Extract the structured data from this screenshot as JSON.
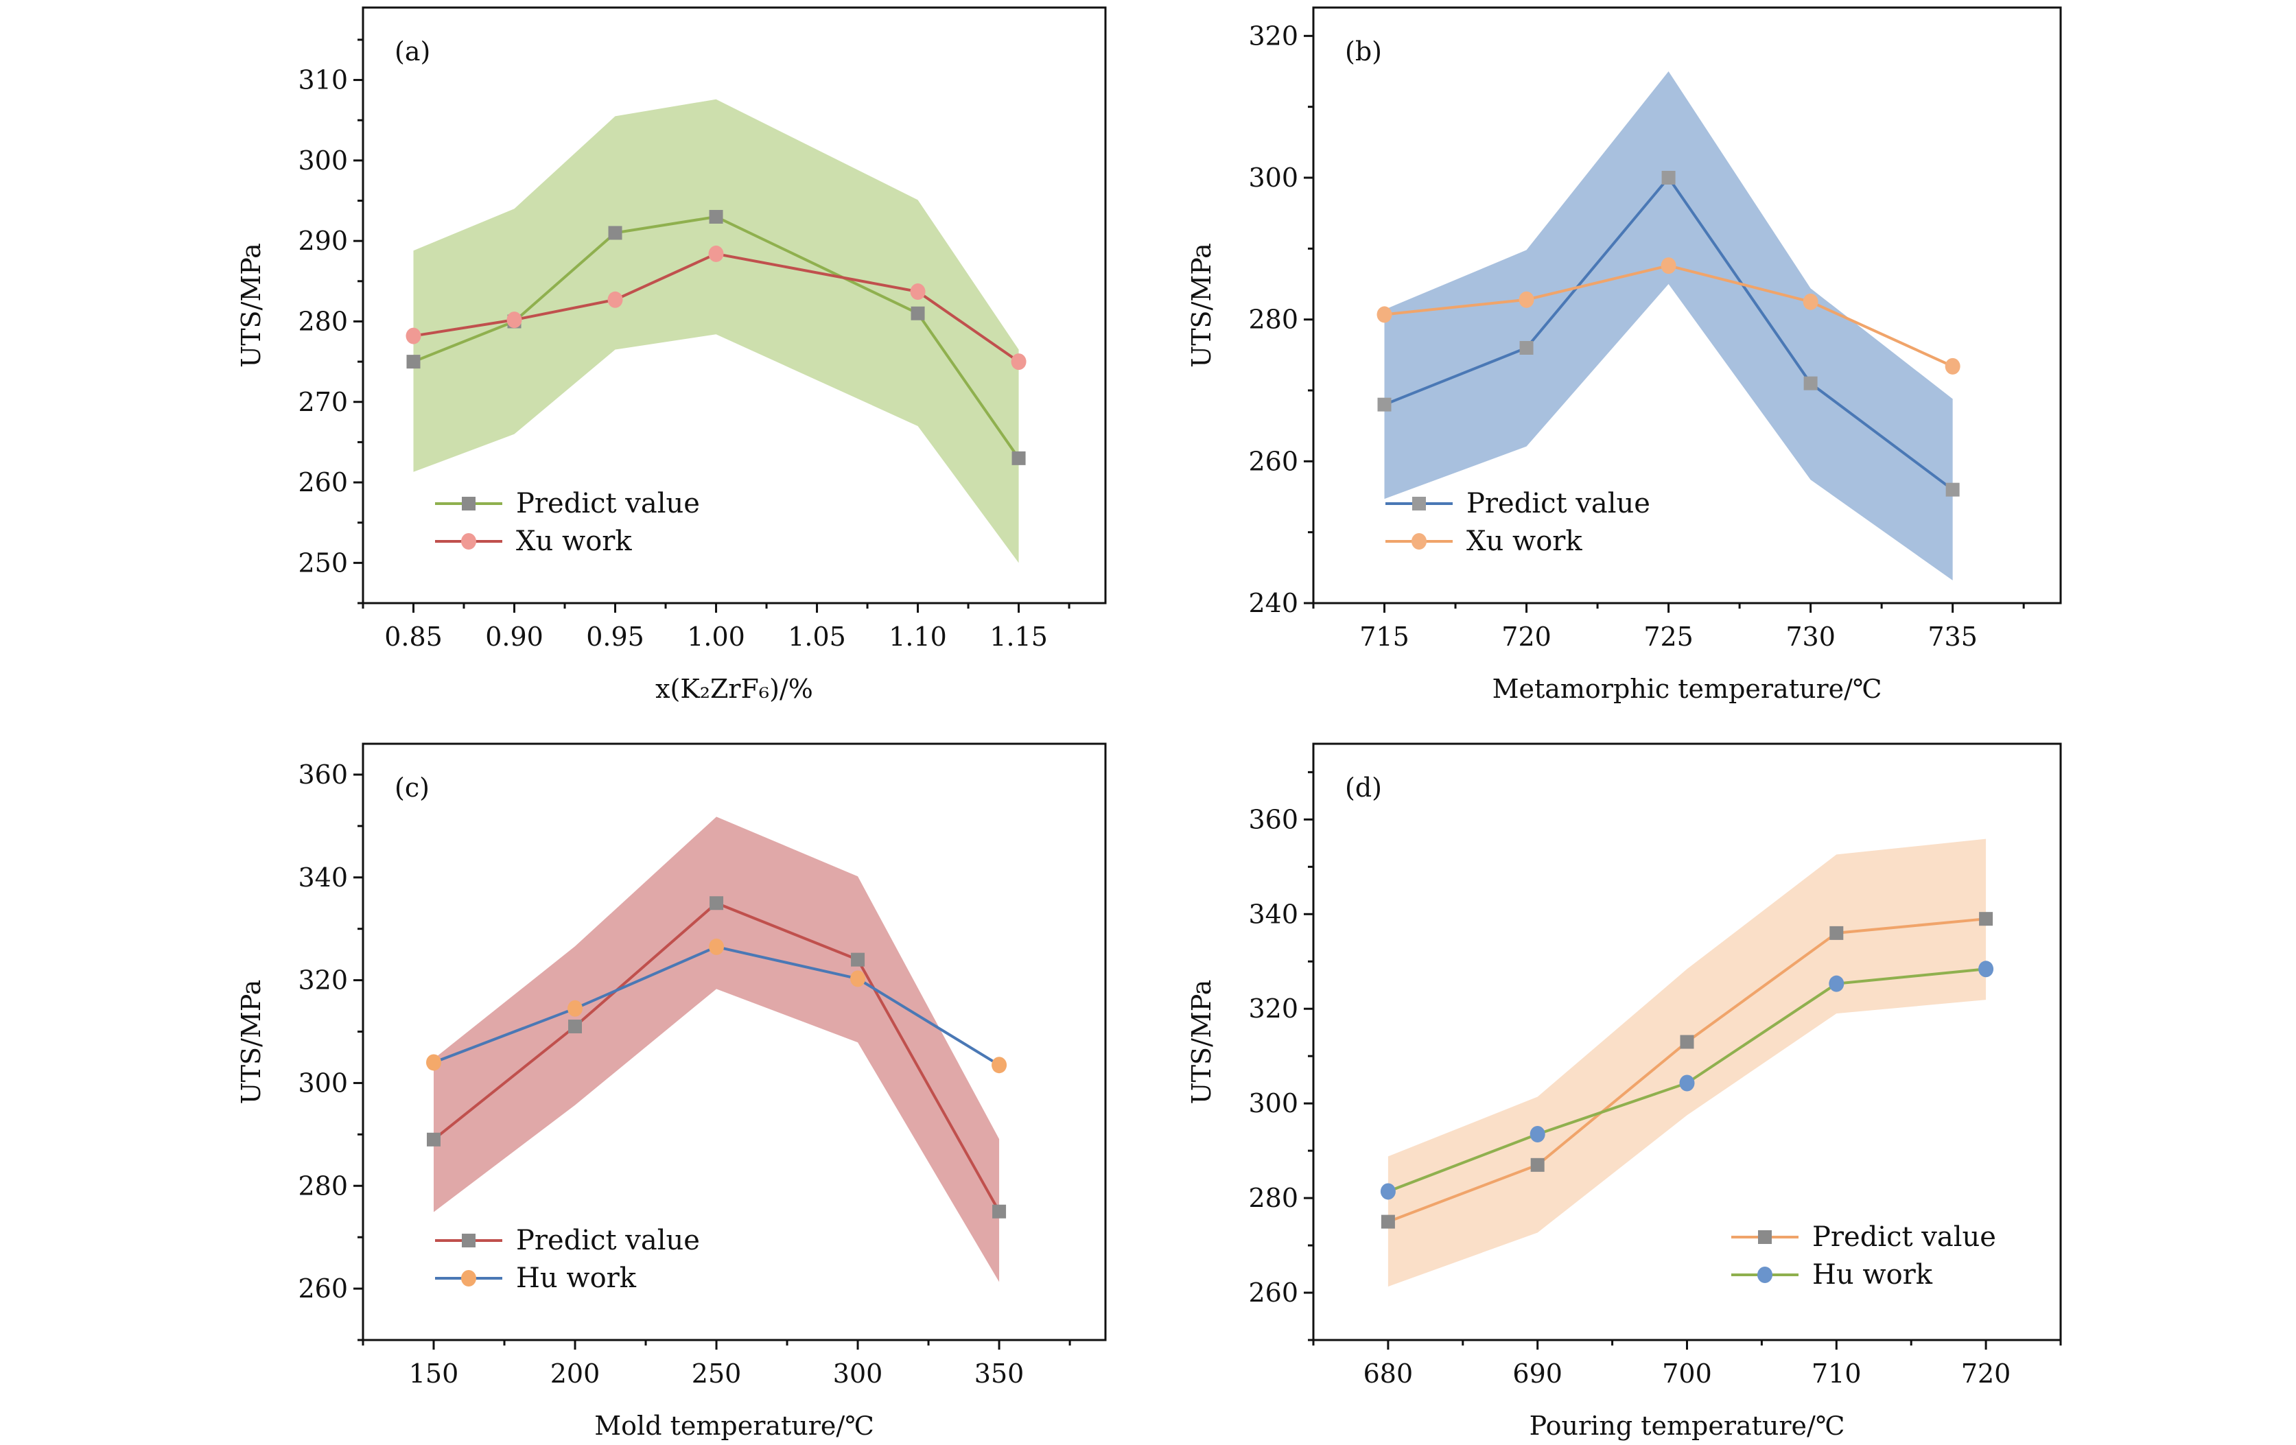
{
  "chart_data": [
    {
      "type": "line",
      "panel_label": "(a)",
      "xlabel": "x(K₂ZrF₆)/%",
      "ylabel": "UTS/MPa",
      "xlim": [
        0.825,
        1.193
      ],
      "ylim": [
        245,
        319
      ],
      "x_ticks": [
        "0.85",
        "0.90",
        "0.95",
        "1.00",
        "1.05",
        "1.10",
        "1.15"
      ],
      "y_ticks": [
        "250",
        "260",
        "270",
        "280",
        "290",
        "300",
        "310"
      ],
      "x_minor_step": 0.025,
      "y_minor_step": 5,
      "legend_position": "lower-left",
      "grid": false,
      "x": [
        0.85,
        0.9,
        0.95,
        1.0,
        1.1,
        1.15
      ],
      "band": {
        "upper": [
          288.8,
          294.0,
          305.5,
          307.6,
          295.1,
          276.5
        ],
        "lower": [
          261.3,
          266.0,
          276.5,
          278.4,
          267.0,
          250.0
        ],
        "color": "#cddfad"
      },
      "series": [
        {
          "name": "Predict value",
          "values": [
            275,
            280,
            291,
            293,
            281,
            263
          ],
          "marker": "square",
          "line_color": "#8fb04e",
          "marker_color": "#8a8a8a"
        },
        {
          "name": "Xu work",
          "values": [
            278.2,
            280.2,
            282.7,
            288.4,
            283.7,
            275.0
          ],
          "marker": "circle",
          "line_color": "#c0504d",
          "marker_color": "#f09a94"
        }
      ]
    },
    {
      "type": "line",
      "panel_label": "(b)",
      "xlabel": "Metamorphic temperature/℃",
      "ylabel": "UTS/MPa",
      "xlim": [
        712.5,
        738.8
      ],
      "ylim": [
        240,
        324
      ],
      "x_ticks": [
        "715",
        "720",
        "725",
        "730",
        "735"
      ],
      "y_ticks": [
        "240",
        "260",
        "280",
        "300",
        "320"
      ],
      "x_minor_step": 2.5,
      "y_minor_step": 10,
      "legend_position": "lower-left",
      "grid": false,
      "x": [
        715,
        720,
        725,
        730,
        735
      ],
      "band": {
        "upper": [
          281.4,
          289.8,
          315.0,
          284.4,
          268.8
        ],
        "lower": [
          254.7,
          262.1,
          285.0,
          257.4,
          243.2
        ],
        "color": "#a8c0de"
      },
      "series": [
        {
          "name": "Predict value",
          "values": [
            268,
            276,
            300,
            271,
            256
          ],
          "marker": "square",
          "line_color": "#4a78b5",
          "marker_color": "#9a9a9a"
        },
        {
          "name": "Xu work",
          "values": [
            280.7,
            282.8,
            287.6,
            282.5,
            273.4
          ],
          "marker": "circle",
          "line_color": "#f0a46a",
          "marker_color": "#f4b07e"
        }
      ]
    },
    {
      "type": "line",
      "panel_label": "(c)",
      "xlabel": "Mold temperature/℃",
      "ylabel": "UTS/MPa",
      "xlim": [
        125,
        387.6
      ],
      "ylim": [
        250,
        366
      ],
      "x_ticks": [
        "150",
        "200",
        "250",
        "300",
        "350"
      ],
      "y_ticks": [
        "260",
        "280",
        "300",
        "320",
        "340",
        "360"
      ],
      "x_minor_step": 25,
      "y_minor_step": 10,
      "legend_position": "lower-left",
      "grid": false,
      "x": [
        150,
        200,
        250,
        300,
        350
      ],
      "band": {
        "upper": [
          304.7,
          326.6,
          351.8,
          340.2,
          289.1
        ],
        "lower": [
          274.9,
          295.7,
          318.3,
          307.9,
          261.3
        ],
        "color": "#e0a8a8"
      },
      "series": [
        {
          "name": "Predict value",
          "values": [
            289,
            311,
            335,
            324,
            275
          ],
          "marker": "square",
          "line_color": "#c0504d",
          "marker_color": "#8a8a8a"
        },
        {
          "name": "Hu work",
          "values": [
            304.0,
            314.5,
            326.5,
            320.3,
            303.5
          ],
          "marker": "circle",
          "line_color": "#4a78b5",
          "marker_color": "#f4a96a"
        }
      ]
    },
    {
      "type": "line",
      "panel_label": "(d)",
      "xlabel": "Pouring temperature/℃",
      "ylabel": "UTS/MPa",
      "xlim": [
        675,
        725
      ],
      "ylim": [
        250,
        376
      ],
      "x_ticks": [
        "680",
        "690",
        "700",
        "710",
        "720"
      ],
      "y_ticks": [
        "260",
        "280",
        "300",
        "320",
        "340",
        "360"
      ],
      "x_minor_step": 5,
      "y_minor_step": 10,
      "legend_position": "lower-right",
      "grid": false,
      "x": [
        680,
        690,
        700,
        710,
        720
      ],
      "band": {
        "upper": [
          288.8,
          301.4,
          328.4,
          352.6,
          355.9
        ],
        "lower": [
          261.3,
          272.7,
          297.5,
          319.0,
          321.9
        ],
        "color": "#fadfc8"
      },
      "series": [
        {
          "name": "Predict value",
          "values": [
            275,
            287,
            313,
            336,
            339
          ],
          "marker": "square",
          "line_color": "#f0a46a",
          "marker_color": "#8a8a8a"
        },
        {
          "name": "Hu work",
          "values": [
            281.4,
            293.5,
            304.3,
            325.3,
            328.4
          ],
          "marker": "circle",
          "line_color": "#8fb04e",
          "marker_color": "#6a94cc"
        }
      ]
    }
  ]
}
